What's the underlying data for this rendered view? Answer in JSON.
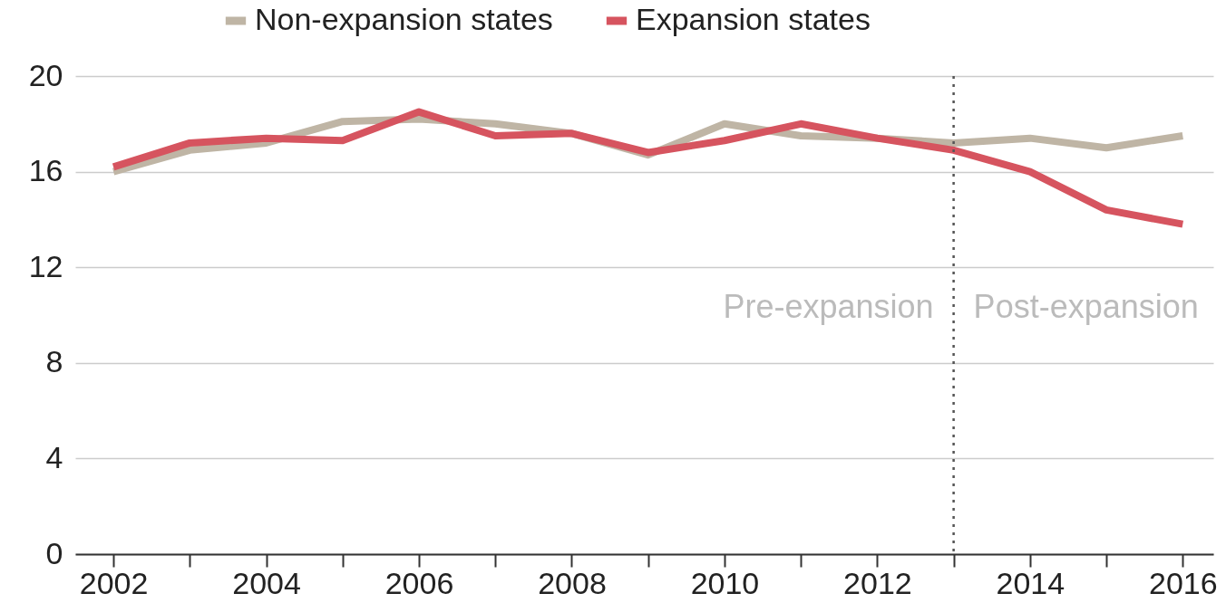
{
  "chart_data": {
    "type": "line",
    "x": [
      2002,
      2003,
      2004,
      2005,
      2006,
      2007,
      2008,
      2009,
      2010,
      2011,
      2012,
      2013,
      2014,
      2015,
      2016
    ],
    "series": [
      {
        "name": "Non-expansion states",
        "color": "#bfb5a5",
        "values": [
          16.0,
          16.9,
          17.2,
          18.1,
          18.2,
          18.0,
          17.6,
          16.7,
          18.0,
          17.5,
          17.4,
          17.2,
          17.4,
          17.0,
          17.5
        ]
      },
      {
        "name": "Expansion states",
        "color": "#d6545f",
        "values": [
          16.2,
          17.2,
          17.4,
          17.3,
          18.5,
          17.5,
          17.6,
          16.8,
          17.3,
          18.0,
          17.4,
          16.9,
          16.0,
          14.4,
          13.8
        ]
      }
    ],
    "xlim": [
      2001.5,
      2016.4
    ],
    "xticks": [
      2002,
      {
        "value": 2003,
        "label": null
      },
      2004,
      {
        "value": 2005,
        "label": null
      },
      2006,
      {
        "value": 2007,
        "label": null
      },
      2008,
      {
        "value": 2009,
        "label": null
      },
      2010,
      {
        "value": 2011,
        "label": null
      },
      2012,
      {
        "value": 2013,
        "label": null
      },
      2014,
      {
        "value": 2015,
        "label": null
      },
      2016
    ],
    "ylim": [
      0,
      20
    ],
    "yticks": [
      0,
      4,
      8,
      12,
      16,
      20
    ],
    "grid": "y",
    "legend": "top",
    "line_style": "solid",
    "ref_lines": [
      {
        "axis": "x",
        "value": 2013,
        "color": "#555555",
        "line_style": "dotted"
      }
    ],
    "annotations": [
      "Pre-expansion",
      "Post-expansion"
    ]
  }
}
